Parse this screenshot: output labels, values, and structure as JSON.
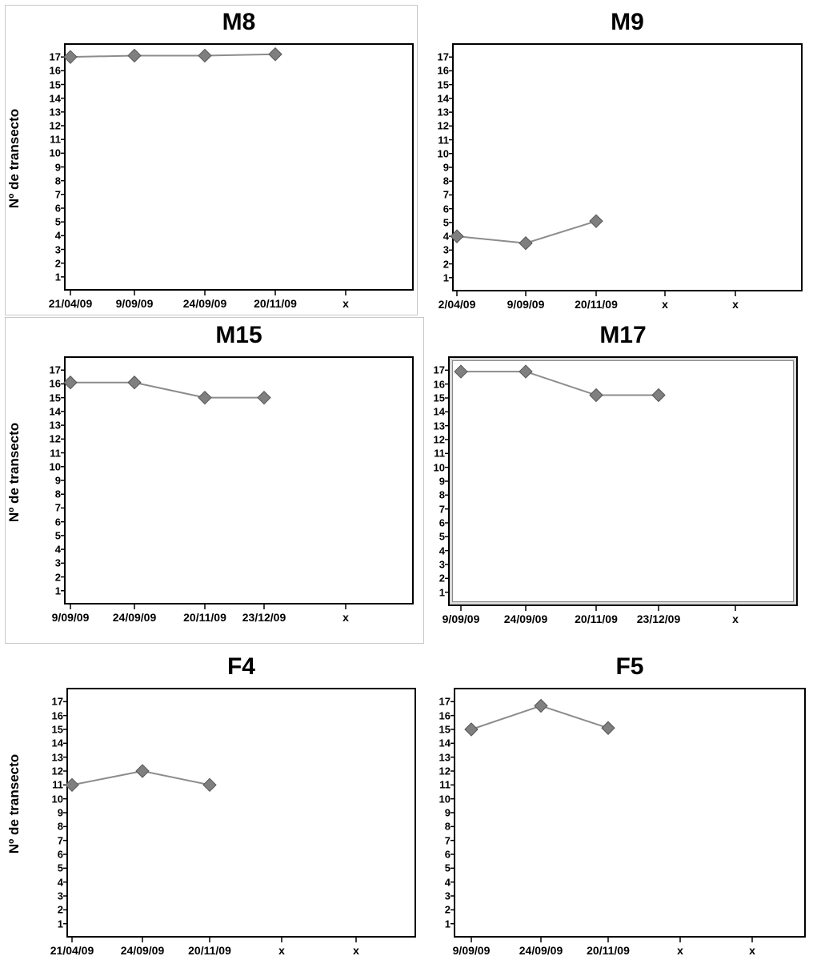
{
  "ylabel": "Nº de transecto",
  "chart_data": [
    {
      "type": "line",
      "title": "M8",
      "ylabel": "Nº de transecto",
      "categories": [
        "21/04/09",
        "9/09/09",
        "24/09/09",
        "20/11/09",
        "x"
      ],
      "values": [
        17,
        17.1,
        17.1,
        17.2,
        null
      ],
      "ylim": [
        0,
        18
      ],
      "yticks": [
        1,
        2,
        3,
        4,
        5,
        6,
        7,
        8,
        9,
        10,
        11,
        12,
        13,
        14,
        15,
        16,
        17
      ]
    },
    {
      "type": "line",
      "title": "M9",
      "ylabel": "",
      "categories": [
        "2/04/09",
        "9/09/09",
        "20/11/09",
        "x",
        "x"
      ],
      "values": [
        4,
        3.5,
        5.1,
        null,
        null
      ],
      "ylim": [
        0,
        18
      ],
      "yticks": [
        1,
        2,
        3,
        4,
        5,
        6,
        7,
        8,
        9,
        10,
        11,
        12,
        13,
        14,
        15,
        16,
        17
      ]
    },
    {
      "type": "line",
      "title": "M15",
      "ylabel": "Nº de transecto",
      "categories": [
        "9/09/09",
        "24/09/09",
        "20/11/09",
        "23/12/09",
        "x"
      ],
      "values": [
        16.1,
        16.1,
        15,
        15,
        null
      ],
      "ylim": [
        0,
        18
      ],
      "yticks": [
        1,
        2,
        3,
        4,
        5,
        6,
        7,
        8,
        9,
        10,
        11,
        12,
        13,
        14,
        15,
        16,
        17
      ]
    },
    {
      "type": "line",
      "title": "M17",
      "ylabel": "",
      "categories": [
        "9/09/09",
        "24/09/09",
        "20/11/09",
        "23/12/09",
        "x"
      ],
      "values": [
        16.9,
        16.9,
        15.2,
        15.2,
        null
      ],
      "ylim": [
        0,
        18
      ],
      "yticks": [
        1,
        2,
        3,
        4,
        5,
        6,
        7,
        8,
        9,
        10,
        11,
        12,
        13,
        14,
        15,
        16,
        17
      ]
    },
    {
      "type": "line",
      "title": "F4",
      "ylabel": "Nº de transecto",
      "categories": [
        "21/04/09",
        "24/09/09",
        "20/11/09",
        "x",
        "x"
      ],
      "values": [
        11,
        12,
        11,
        null,
        null
      ],
      "ylim": [
        0,
        18
      ],
      "yticks": [
        1,
        2,
        3,
        4,
        5,
        6,
        7,
        8,
        9,
        10,
        11,
        12,
        13,
        14,
        15,
        16,
        17
      ]
    },
    {
      "type": "line",
      "title": "F5",
      "ylabel": "",
      "categories": [
        "9/09/09",
        "24/09/09",
        "20/11/09",
        "x",
        "x"
      ],
      "values": [
        15,
        16.7,
        15.1,
        null,
        null
      ],
      "ylim": [
        0,
        18
      ],
      "yticks": [
        1,
        2,
        3,
        4,
        5,
        6,
        7,
        8,
        9,
        10,
        11,
        12,
        13,
        14,
        15,
        16,
        17
      ]
    }
  ],
  "colors": {
    "marker": "#7f7f7f",
    "marker_edge": "#555555",
    "line": "#8c8c8c",
    "axis": "#000000"
  }
}
